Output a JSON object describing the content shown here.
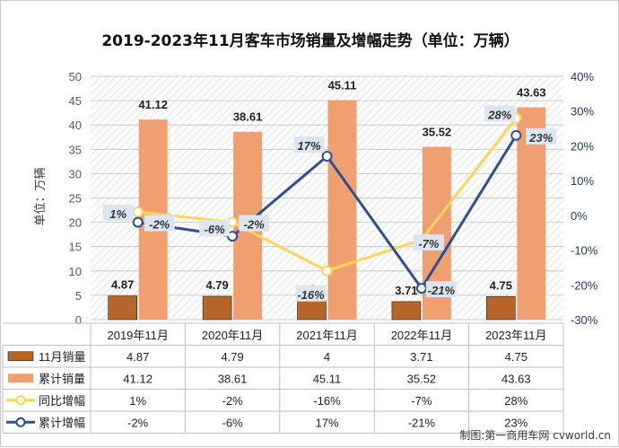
{
  "chart_data": {
    "type": "bar",
    "title": "2019-2023年11月客车市场销量及增幅走势（单位：万辆）",
    "ylabel": "单位：万辆",
    "categories": [
      "2019年11月",
      "2020年11月",
      "2021年11月",
      "2022年11月",
      "2023年11月"
    ],
    "y_left": {
      "min": 0,
      "max": 50,
      "step": 5,
      "ticks": [
        "0",
        "5",
        "10",
        "15",
        "20",
        "25",
        "30",
        "35",
        "40",
        "45",
        "50"
      ]
    },
    "y_right": {
      "min": -30,
      "max": 40,
      "step": 10,
      "ticks": [
        "-30%",
        "-20%",
        "-10%",
        "0%",
        "10%",
        "20%",
        "30%",
        "40%"
      ]
    },
    "grid": true,
    "legend_placement": "bottom (data table)",
    "series": [
      {
        "name": "11月销量",
        "type": "bar",
        "axis": "left",
        "color": "#b8652a",
        "values": [
          4.87,
          4.79,
          4,
          3.71,
          4.75
        ],
        "labels": [
          "4.87",
          "4.79",
          "4",
          "3.71",
          "4.75"
        ]
      },
      {
        "name": "累计销量",
        "type": "bar",
        "axis": "left",
        "color": "#f0a070",
        "values": [
          41.12,
          38.61,
          45.11,
          35.52,
          43.63
        ],
        "labels": [
          "41.12",
          "38.61",
          "45.11",
          "35.52",
          "43.63"
        ]
      },
      {
        "name": "同比增幅",
        "type": "line",
        "axis": "right",
        "color": "#ffd45a",
        "values": [
          1,
          -2,
          -16,
          -7,
          28
        ],
        "labels": [
          "1%",
          "-2%",
          "-16%",
          "-7%",
          "28%"
        ]
      },
      {
        "name": "累计增幅",
        "type": "line",
        "axis": "right",
        "color": "#2f4f8f",
        "values": [
          -2,
          -6,
          17,
          -21,
          23
        ],
        "labels": [
          "-2%",
          "-6%",
          "17%",
          "-21%",
          "23%"
        ]
      }
    ]
  },
  "watermark": "制图:第一商用车网 cvworld.cn"
}
